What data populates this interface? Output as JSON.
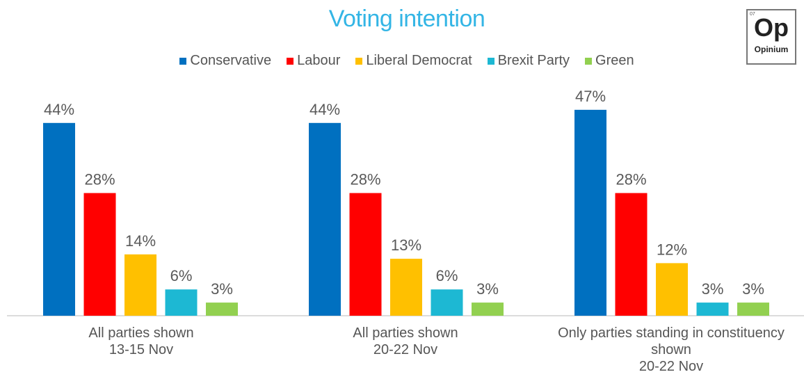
{
  "title": "Voting intention",
  "logo": {
    "number": "07",
    "mark": "Op",
    "word": "Opinium"
  },
  "colors": {
    "Conservative": "#0070c0",
    "Labour": "#ff0000",
    "Liberal Democrat": "#ffc000",
    "Brexit Party": "#1db8d3",
    "Green": "#92d050"
  },
  "chart_data": {
    "type": "bar",
    "title": "Voting intention",
    "value_suffix": "%",
    "series": [
      {
        "name": "Conservative",
        "values": [
          44,
          44,
          47
        ]
      },
      {
        "name": "Labour",
        "values": [
          28,
          28,
          28
        ]
      },
      {
        "name": "Liberal Democrat",
        "values": [
          14,
          13,
          12
        ]
      },
      {
        "name": "Brexit Party",
        "values": [
          6,
          6,
          3
        ]
      },
      {
        "name": "Green",
        "values": [
          3,
          3,
          3
        ]
      }
    ],
    "categories": [
      [
        "All parties shown",
        "13-15 Nov"
      ],
      [
        "All parties shown",
        "20-22 Nov"
      ],
      [
        "Only parties standing in constituency",
        "shown",
        "20-22 Nov"
      ]
    ],
    "legend_position": "top",
    "grid": false
  }
}
